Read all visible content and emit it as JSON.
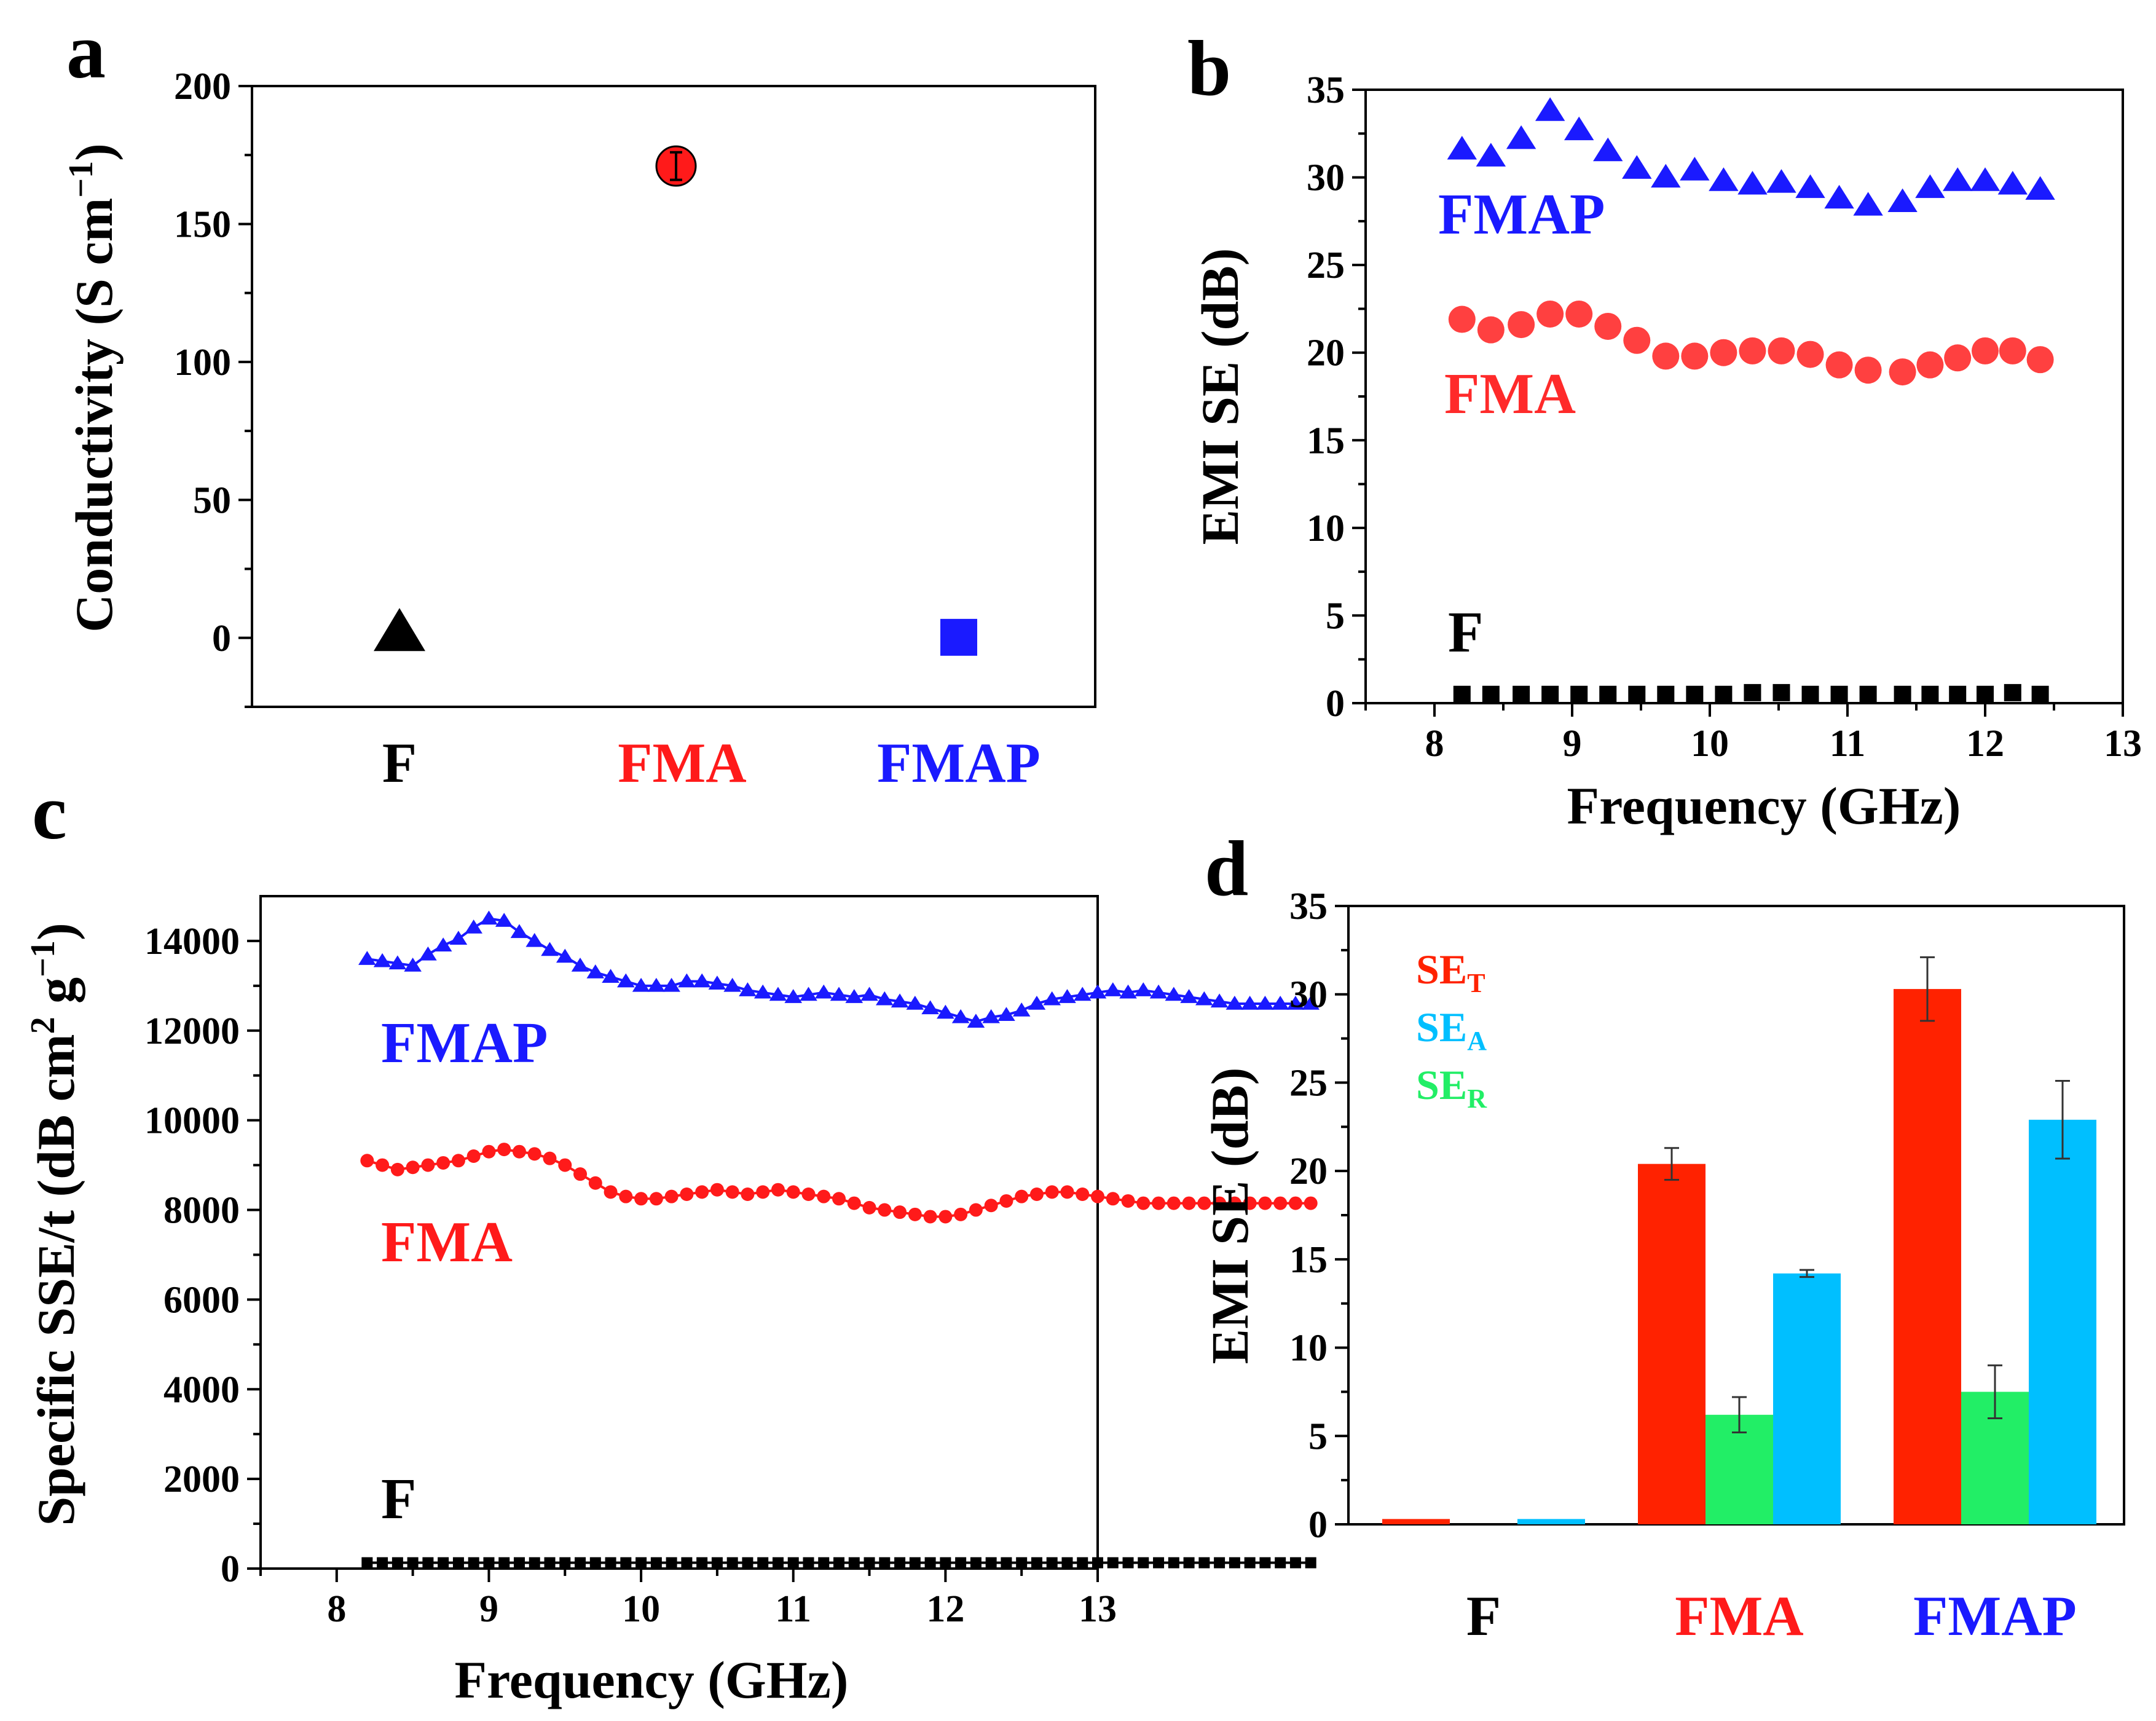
{
  "panels": {
    "a": {
      "letter": "a",
      "ylabel": "Conductivity (S cm",
      "ylabel_exp": "−1",
      "ylabel_close": ")",
      "ylim": [
        -25,
        200
      ],
      "yticks": [
        "0",
        "50",
        "100",
        "150",
        "200"
      ],
      "categories": [
        "F",
        "FMA",
        "FMAP"
      ],
      "category_colors": [
        "#000000",
        "#ff1a1a",
        "#1a1aff"
      ],
      "points": [
        {
          "category": "F",
          "value": 1,
          "marker": "triangle",
          "color": "#000000"
        },
        {
          "category": "FMA",
          "value": 171,
          "error": 5,
          "marker": "circle",
          "color": "#ff1a1a"
        },
        {
          "category": "FMAP",
          "value": 0.2,
          "marker": "square",
          "color": "#1a1aff"
        }
      ]
    },
    "b": {
      "letter": "b",
      "xlabel": "Frequency (GHz)",
      "ylabel": "EMI SE (dB)",
      "xlim": [
        7.5,
        13
      ],
      "ylim": [
        0,
        35
      ],
      "xticks": [
        "8",
        "9",
        "10",
        "11",
        "12",
        "13"
      ],
      "yticks": [
        "0",
        "5",
        "10",
        "15",
        "20",
        "25",
        "30",
        "35"
      ],
      "series_labels": [
        "FMAP",
        "FMA",
        "F"
      ]
    },
    "c": {
      "letter": "c",
      "xlabel": "Frequency (GHz)",
      "ylabel": "Specific SSE/t (dB cm",
      "ylabel_exp1": "2",
      "ylabel_mid": " g",
      "ylabel_exp2": "−1",
      "ylabel_close": ")",
      "xlim": [
        7.5,
        13
      ],
      "ylim": [
        0,
        15000
      ],
      "xticks": [
        "8",
        "9",
        "10",
        "11",
        "12",
        "13"
      ],
      "yticks": [
        "0",
        "2000",
        "4000",
        "6000",
        "8000",
        "10000",
        "12000",
        "14000"
      ],
      "series_labels": [
        "FMAP",
        "FMA",
        "F"
      ]
    },
    "d": {
      "letter": "d",
      "ylabel": "EMI SE (dB)",
      "ylim": [
        0,
        35
      ],
      "yticks": [
        "0",
        "5",
        "10",
        "15",
        "20",
        "25",
        "30",
        "35"
      ],
      "categories": [
        "F",
        "FMA",
        "FMAP"
      ],
      "category_colors": [
        "#000000",
        "#ff1a1a",
        "#1a1aff"
      ],
      "legend": [
        {
          "base": "SE",
          "sub": "T",
          "color": "#ff2200"
        },
        {
          "base": "SE",
          "sub": "A",
          "color": "#00bfff"
        },
        {
          "base": "SE",
          "sub": "R",
          "color": "#22ee66"
        }
      ]
    }
  },
  "chart_data": [
    {
      "type": "scatter",
      "panel": "a",
      "title": "",
      "xlabel": "",
      "ylabel": "Conductivity (S cm−1)",
      "categories": [
        "F",
        "FMA",
        "FMAP"
      ],
      "values": [
        1,
        171,
        0.2
      ],
      "errors": [
        0,
        5,
        0
      ],
      "ylim": [
        -25,
        200
      ]
    },
    {
      "type": "scatter",
      "panel": "b",
      "xlabel": "Frequency (GHz)",
      "ylabel": "EMI SE (dB)",
      "xlim": [
        7.5,
        13
      ],
      "ylim": [
        0,
        35
      ],
      "x": [
        8.2,
        8.41,
        8.63,
        8.84,
        9.05,
        9.26,
        9.47,
        9.68,
        9.89,
        10.1,
        10.31,
        10.52,
        10.73,
        10.94,
        11.15,
        11.4,
        11.6,
        11.8,
        12.0,
        12.2,
        12.4
      ],
      "series": [
        {
          "name": "FMAP",
          "color": "#1a1aff",
          "marker": "triangle",
          "values": [
            31.6,
            31.2,
            32.2,
            33.8,
            32.7,
            31.5,
            30.5,
            30.0,
            30.4,
            29.8,
            29.6,
            29.7,
            29.4,
            28.8,
            28.4,
            28.6,
            29.4,
            29.8,
            29.8,
            29.6,
            29.3
          ]
        },
        {
          "name": "FMA",
          "color": "#ff4040",
          "marker": "circle",
          "values": [
            21.9,
            21.3,
            21.6,
            22.2,
            22.2,
            21.5,
            20.7,
            19.8,
            19.8,
            20.0,
            20.1,
            20.1,
            19.9,
            19.3,
            19.0,
            18.9,
            19.3,
            19.7,
            20.1,
            20.1,
            19.6
          ]
        },
        {
          "name": "F",
          "color": "#000000",
          "marker": "square",
          "values": [
            0.5,
            0.5,
            0.5,
            0.5,
            0.5,
            0.5,
            0.5,
            0.5,
            0.5,
            0.5,
            0.6,
            0.6,
            0.5,
            0.5,
            0.5,
            0.5,
            0.5,
            0.5,
            0.5,
            0.6,
            0.5
          ]
        }
      ]
    },
    {
      "type": "line",
      "panel": "c",
      "xlabel": "Frequency (GHz)",
      "ylabel": "Specific SSE/t (dB cm2 g−1)",
      "xlim": [
        7.5,
        13
      ],
      "ylim": [
        0,
        15000
      ],
      "x_start": 8.2,
      "x_step": 0.1,
      "series": [
        {
          "name": "FMAP",
          "color": "#1a1aff",
          "marker": "triangle",
          "values": [
            13600,
            13550,
            13500,
            13450,
            13700,
            13900,
            14050,
            14300,
            14500,
            14450,
            14200,
            14000,
            13800,
            13650,
            13450,
            13300,
            13200,
            13100,
            13000,
            13000,
            13000,
            13100,
            13100,
            13050,
            13000,
            12900,
            12850,
            12800,
            12750,
            12800,
            12850,
            12800,
            12750,
            12800,
            12700,
            12650,
            12600,
            12500,
            12400,
            12300,
            12200,
            12300,
            12350,
            12450,
            12600,
            12700,
            12750,
            12800,
            12850,
            12900,
            12850,
            12900,
            12850,
            12800,
            12750,
            12700,
            12650,
            12600,
            12600,
            12600,
            12600,
            12600,
            12600
          ]
        },
        {
          "name": "FMA",
          "color": "#ff1a1a",
          "marker": "circle",
          "values": [
            9100,
            9000,
            8900,
            8950,
            9000,
            9050,
            9100,
            9200,
            9300,
            9350,
            9300,
            9250,
            9150,
            9000,
            8800,
            8600,
            8400,
            8300,
            8250,
            8250,
            8300,
            8350,
            8400,
            8450,
            8400,
            8350,
            8400,
            8450,
            8400,
            8350,
            8300,
            8250,
            8150,
            8050,
            8000,
            7950,
            7900,
            7850,
            7850,
            7900,
            8000,
            8100,
            8200,
            8300,
            8350,
            8400,
            8400,
            8350,
            8300,
            8250,
            8200,
            8150,
            8150,
            8150,
            8150,
            8150,
            8150,
            8150,
            8150,
            8150,
            8150,
            8150,
            8150
          ]
        },
        {
          "name": "F",
          "color": "#000000",
          "marker": "square",
          "values": [
            130,
            130,
            130,
            130,
            130,
            130,
            130,
            130,
            130,
            130,
            130,
            130,
            130,
            130,
            130,
            130,
            130,
            130,
            130,
            130,
            130,
            130,
            130,
            130,
            130,
            130,
            130,
            130,
            130,
            130,
            130,
            130,
            130,
            130,
            130,
            130,
            130,
            130,
            130,
            130,
            130,
            130,
            130,
            130,
            130,
            130,
            130,
            130,
            130,
            130,
            130,
            130,
            130,
            130,
            130,
            130,
            130,
            130,
            130,
            130,
            130,
            130,
            130
          ]
        }
      ]
    },
    {
      "type": "bar",
      "panel": "d",
      "xlabel": "",
      "ylabel": "EMI SE (dB)",
      "ylim": [
        0,
        35
      ],
      "categories": [
        "F",
        "FMA",
        "FMAP"
      ],
      "series": [
        {
          "name": "SET",
          "color": "#ff2200",
          "values": [
            0.3,
            20.4,
            30.3
          ],
          "errors": [
            0,
            0.9,
            1.8
          ]
        },
        {
          "name": "SER",
          "color": "#22ee66",
          "values": [
            0,
            6.2,
            7.5
          ],
          "errors": [
            0,
            1.0,
            1.5
          ]
        },
        {
          "name": "SEA",
          "color": "#00bfff",
          "values": [
            0.3,
            14.2,
            22.9
          ],
          "errors": [
            0,
            0.2,
            2.2
          ]
        }
      ]
    }
  ]
}
